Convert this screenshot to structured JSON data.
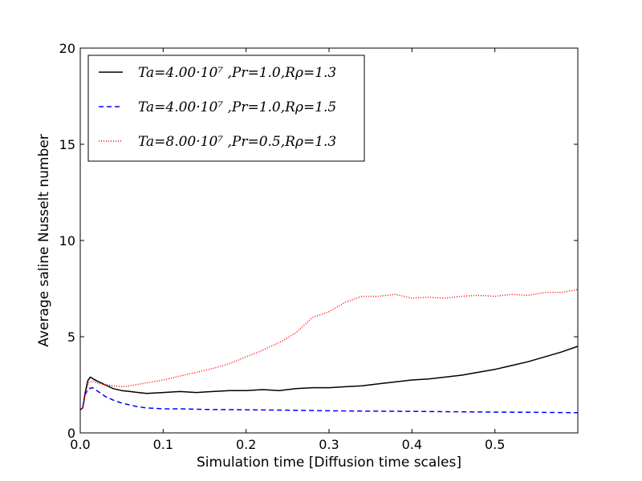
{
  "chart_data": {
    "type": "line",
    "title": "",
    "xlabel": "Simulation time [Diffusion time scales]",
    "ylabel": "Average saline Nusselt number",
    "xlim": [
      0.0,
      0.6
    ],
    "ylim": [
      0,
      20
    ],
    "xticks": [
      0.0,
      0.1,
      0.2,
      0.3,
      0.4,
      0.5
    ],
    "xtick_labels": [
      "0.0",
      "0.1",
      "0.2",
      "0.3",
      "0.4",
      "0.5"
    ],
    "yticks": [
      0,
      5,
      10,
      15,
      20
    ],
    "ytick_labels": [
      "0",
      "5",
      "10",
      "15",
      "20"
    ],
    "grid": false,
    "legend_position": "top-left",
    "series": [
      {
        "name": "Ta=4.00·10^7, Pr=1.0, R_ρ=1.3",
        "legend_label": "Ta=4.00·10⁷ ,Pr=1.0,Rρ=1.3",
        "color": "#000000",
        "style": "solid",
        "x": [
          0.0,
          0.003,
          0.006,
          0.009,
          0.012,
          0.016,
          0.02,
          0.025,
          0.03,
          0.04,
          0.05,
          0.06,
          0.07,
          0.08,
          0.1,
          0.12,
          0.14,
          0.16,
          0.18,
          0.2,
          0.22,
          0.24,
          0.26,
          0.28,
          0.3,
          0.32,
          0.34,
          0.36,
          0.38,
          0.4,
          0.42,
          0.44,
          0.46,
          0.48,
          0.5,
          0.52,
          0.54,
          0.56,
          0.58,
          0.6
        ],
        "y": [
          1.2,
          1.3,
          2.1,
          2.7,
          2.9,
          2.8,
          2.7,
          2.6,
          2.5,
          2.3,
          2.2,
          2.15,
          2.1,
          2.05,
          2.1,
          2.15,
          2.1,
          2.15,
          2.2,
          2.2,
          2.25,
          2.2,
          2.3,
          2.35,
          2.35,
          2.4,
          2.45,
          2.55,
          2.65,
          2.75,
          2.8,
          2.9,
          3.0,
          3.15,
          3.3,
          3.5,
          3.7,
          3.95,
          4.2,
          4.5
        ]
      },
      {
        "name": "Ta=4.00·10^7, Pr=1.0, R_ρ=1.5",
        "legend_label": "Ta=4.00·10⁷ ,Pr=1.0,Rρ=1.5",
        "color": "#0000ff",
        "style": "dashed",
        "x": [
          0.0,
          0.003,
          0.006,
          0.01,
          0.015,
          0.02,
          0.03,
          0.04,
          0.05,
          0.06,
          0.07,
          0.08,
          0.1,
          0.12,
          0.15,
          0.2,
          0.25,
          0.3,
          0.35,
          0.4,
          0.45,
          0.5,
          0.55,
          0.6
        ],
        "y": [
          1.2,
          1.3,
          2.0,
          2.3,
          2.35,
          2.2,
          1.9,
          1.7,
          1.55,
          1.45,
          1.35,
          1.3,
          1.25,
          1.25,
          1.22,
          1.2,
          1.18,
          1.15,
          1.13,
          1.12,
          1.1,
          1.08,
          1.07,
          1.05
        ]
      },
      {
        "name": "Ta=8.00·10^7, Pr=0.5, R_ρ=1.3",
        "legend_label": "Ta=8.00·10⁷ ,Pr=0.5,Rρ=1.3",
        "color": "#ff0000",
        "style": "dotted",
        "x": [
          0.0,
          0.003,
          0.006,
          0.01,
          0.015,
          0.02,
          0.03,
          0.04,
          0.05,
          0.06,
          0.08,
          0.1,
          0.12,
          0.14,
          0.16,
          0.18,
          0.2,
          0.22,
          0.24,
          0.26,
          0.27,
          0.28,
          0.3,
          0.32,
          0.34,
          0.36,
          0.38,
          0.4,
          0.42,
          0.44,
          0.46,
          0.48,
          0.5,
          0.52,
          0.54,
          0.56,
          0.58,
          0.6
        ],
        "y": [
          1.2,
          1.3,
          2.0,
          2.6,
          2.7,
          2.6,
          2.5,
          2.45,
          2.4,
          2.45,
          2.6,
          2.75,
          2.95,
          3.15,
          3.35,
          3.6,
          3.95,
          4.3,
          4.7,
          5.2,
          5.6,
          6.0,
          6.3,
          6.8,
          7.1,
          7.1,
          7.2,
          7.0,
          7.05,
          7.0,
          7.1,
          7.15,
          7.1,
          7.2,
          7.15,
          7.3,
          7.3,
          7.45
        ]
      }
    ]
  }
}
